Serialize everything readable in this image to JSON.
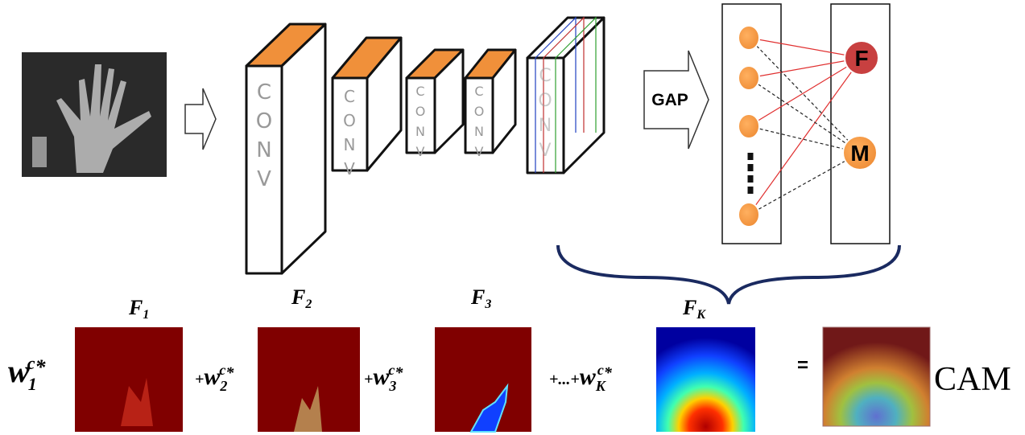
{
  "conv_blocks": [
    {
      "label": "CONV"
    },
    {
      "label": "CONV"
    },
    {
      "label": "CONV"
    },
    {
      "label": "CONV"
    },
    {
      "label": "CONV"
    }
  ],
  "gap": {
    "label": "GAP"
  },
  "output_nodes": [
    {
      "label": "F"
    },
    {
      "label": "M"
    }
  ],
  "feature_maps": [
    {
      "label": "F",
      "subscript": "1"
    },
    {
      "label": "F",
      "subscript": "2"
    },
    {
      "label": "F",
      "subscript": "3"
    },
    {
      "label": "F",
      "subscript": "K"
    }
  ],
  "terms": [
    {
      "symbol": "w",
      "sub": "1",
      "sup": "c",
      "op": "*"
    },
    {
      "prefix": "+",
      "symbol": "w",
      "sub": "2",
      "sup": "c",
      "op": "*"
    },
    {
      "prefix": "+",
      "symbol": "w",
      "sub": "3",
      "sup": "c",
      "op": "*"
    },
    {
      "prefix": "+...+",
      "symbol": "w",
      "sub": "K",
      "sup": "c",
      "op": "*"
    }
  ],
  "equals": "=",
  "result": "CAM"
}
